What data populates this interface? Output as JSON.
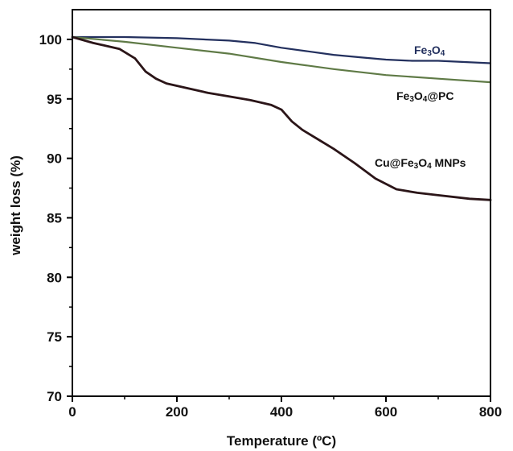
{
  "chart_data": {
    "type": "line",
    "xlabel": "Temperature (ºC)",
    "ylabel": "weight loss (%)",
    "xlim": [
      0,
      800
    ],
    "ylim": [
      70,
      102.5
    ],
    "x_ticks": [
      0,
      200,
      400,
      600,
      800
    ],
    "y_ticks": [
      70,
      75,
      80,
      85,
      90,
      95,
      100
    ],
    "grid": false,
    "series": [
      {
        "name": "Fe3O4",
        "color": "#23305e",
        "points": [
          [
            0,
            100.2
          ],
          [
            100,
            100.2
          ],
          [
            200,
            100.1
          ],
          [
            300,
            99.9
          ],
          [
            350,
            99.7
          ],
          [
            400,
            99.3
          ],
          [
            450,
            99.0
          ],
          [
            500,
            98.7
          ],
          [
            550,
            98.5
          ],
          [
            600,
            98.3
          ],
          [
            650,
            98.2
          ],
          [
            700,
            98.2
          ],
          [
            750,
            98.1
          ],
          [
            800,
            98.0
          ]
        ]
      },
      {
        "name": "Fe3O4@PC",
        "color": "#5f7a46",
        "points": [
          [
            0,
            100.2
          ],
          [
            100,
            99.8
          ],
          [
            200,
            99.3
          ],
          [
            300,
            98.8
          ],
          [
            400,
            98.1
          ],
          [
            500,
            97.5
          ],
          [
            600,
            97.0
          ],
          [
            700,
            96.7
          ],
          [
            800,
            96.4
          ]
        ]
      },
      {
        "name": "Cu@Fe3O4 MNPs",
        "color": "#2b1518",
        "points": [
          [
            0,
            100.2
          ],
          [
            40,
            99.7
          ],
          [
            90,
            99.2
          ],
          [
            120,
            98.4
          ],
          [
            140,
            97.3
          ],
          [
            160,
            96.7
          ],
          [
            180,
            96.3
          ],
          [
            220,
            95.9
          ],
          [
            260,
            95.5
          ],
          [
            300,
            95.2
          ],
          [
            340,
            94.9
          ],
          [
            380,
            94.5
          ],
          [
            400,
            94.1
          ],
          [
            420,
            93.1
          ],
          [
            440,
            92.4
          ],
          [
            470,
            91.6
          ],
          [
            500,
            90.8
          ],
          [
            540,
            89.6
          ],
          [
            580,
            88.3
          ],
          [
            620,
            87.4
          ],
          [
            660,
            87.1
          ],
          [
            700,
            86.9
          ],
          [
            760,
            86.6
          ],
          [
            800,
            86.5
          ]
        ]
      }
    ],
    "labels": {
      "fe3o4": {
        "pre": "Fe",
        "sub1": "3",
        "mid": "O",
        "sub2": "4",
        "post": ""
      },
      "fe3o4_pc": {
        "pre": "Fe",
        "sub1": "3",
        "mid": "O",
        "sub2": "4",
        "post": "@PC"
      },
      "cu_fe3o4": {
        "pre": "Cu@Fe",
        "sub1": "3",
        "mid": "O",
        "sub2": "4",
        "post": " MNPs"
      }
    }
  }
}
